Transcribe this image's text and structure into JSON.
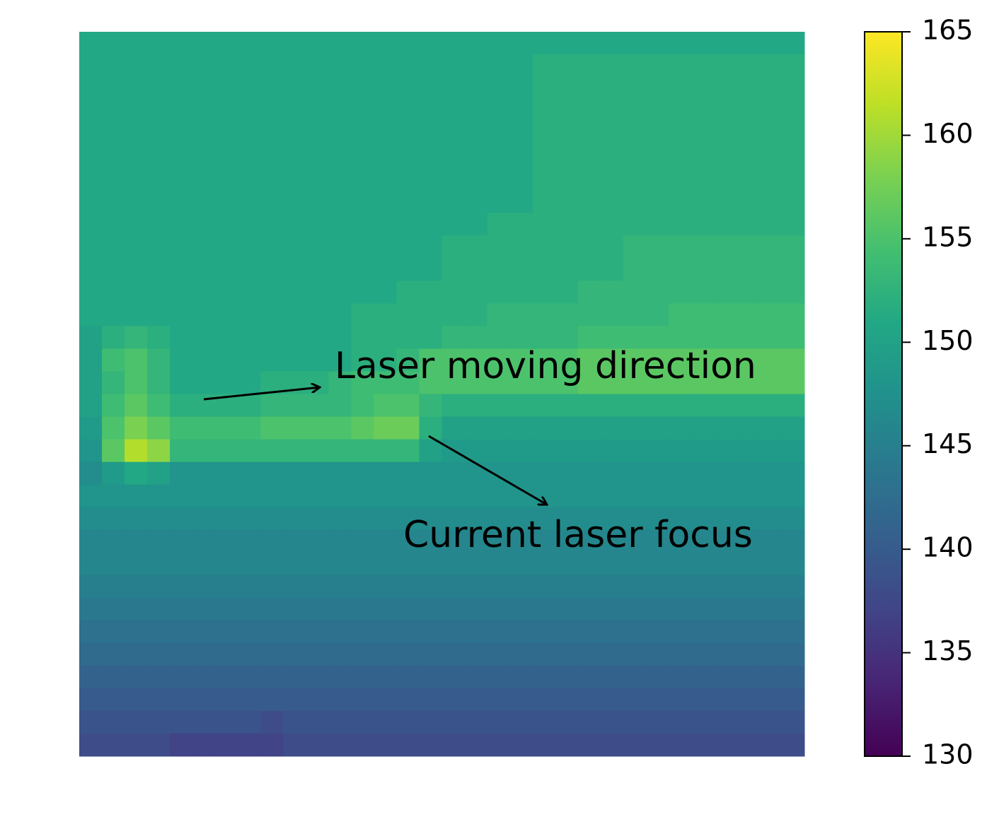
{
  "chart_data": {
    "type": "heatmap",
    "colormap": "viridis",
    "clim": [
      130,
      165
    ],
    "cticks": [
      130,
      135,
      140,
      145,
      150,
      155,
      160,
      165
    ],
    "annotations": [
      "Laser moving direction",
      "Current laser focus"
    ],
    "values": [
      [
        151,
        151,
        151,
        151,
        151,
        151,
        151,
        151,
        151,
        151,
        151,
        151,
        151,
        151,
        151,
        151,
        151,
        151,
        151,
        151,
        151,
        151,
        151,
        151,
        151,
        151,
        151,
        151,
        151,
        151,
        151,
        151
      ],
      [
        151,
        151,
        151,
        151,
        151,
        151,
        151,
        151,
        151,
        151,
        151,
        151,
        151,
        151,
        151,
        151,
        151,
        151,
        151,
        151,
        152,
        152,
        152,
        152,
        152,
        152,
        152,
        152,
        152,
        152,
        152,
        152
      ],
      [
        151,
        151,
        151,
        151,
        151,
        151,
        151,
        151,
        151,
        151,
        151,
        151,
        151,
        151,
        151,
        151,
        151,
        151,
        151,
        151,
        152,
        152,
        152,
        152,
        152,
        152,
        152,
        152,
        152,
        152,
        152,
        152
      ],
      [
        151,
        151,
        151,
        151,
        151,
        151,
        151,
        151,
        151,
        151,
        151,
        151,
        151,
        151,
        151,
        151,
        151,
        151,
        151,
        151,
        152,
        152,
        152,
        152,
        152,
        152,
        152,
        152,
        152,
        152,
        152,
        152
      ],
      [
        151,
        151,
        151,
        151,
        151,
        151,
        151,
        151,
        151,
        151,
        151,
        151,
        151,
        151,
        151,
        151,
        151,
        151,
        151,
        151,
        152,
        152,
        152,
        152,
        152,
        152,
        152,
        152,
        152,
        152,
        152,
        152
      ],
      [
        151,
        151,
        151,
        151,
        151,
        151,
        151,
        151,
        151,
        151,
        151,
        151,
        151,
        151,
        151,
        151,
        151,
        151,
        151,
        151,
        152,
        152,
        152,
        152,
        152,
        152,
        152,
        152,
        152,
        152,
        152,
        152
      ],
      [
        151,
        151,
        151,
        151,
        151,
        151,
        151,
        151,
        151,
        151,
        151,
        151,
        151,
        151,
        151,
        151,
        151,
        151,
        151,
        151,
        152,
        152,
        152,
        152,
        152,
        152,
        152,
        152,
        152,
        152,
        152,
        152
      ],
      [
        151,
        151,
        151,
        151,
        151,
        151,
        151,
        151,
        151,
        151,
        151,
        151,
        151,
        151,
        151,
        151,
        151,
        151,
        151,
        151,
        152,
        152,
        152,
        152,
        152,
        152,
        152,
        152,
        152,
        152,
        152,
        152
      ],
      [
        151,
        151,
        151,
        151,
        151,
        151,
        151,
        151,
        151,
        151,
        151,
        151,
        151,
        151,
        151,
        151,
        151,
        151,
        152,
        152,
        152,
        152,
        152,
        152,
        152,
        152,
        152,
        152,
        152,
        152,
        152,
        152
      ],
      [
        151,
        151,
        151,
        151,
        151,
        151,
        151,
        151,
        151,
        151,
        151,
        151,
        151,
        151,
        151,
        151,
        152,
        152,
        152,
        152,
        152,
        152,
        152,
        152,
        153,
        153,
        153,
        153,
        153,
        153,
        153,
        153
      ],
      [
        151,
        151,
        151,
        151,
        151,
        151,
        151,
        151,
        151,
        151,
        151,
        151,
        151,
        151,
        151,
        151,
        152,
        152,
        152,
        152,
        152,
        152,
        152,
        152,
        153,
        153,
        153,
        153,
        153,
        153,
        153,
        153
      ],
      [
        151,
        151,
        151,
        151,
        151,
        151,
        151,
        151,
        151,
        151,
        151,
        151,
        151,
        151,
        152,
        152,
        152,
        152,
        152,
        152,
        152,
        152,
        153,
        153,
        153,
        153,
        153,
        153,
        153,
        153,
        153,
        153
      ],
      [
        151,
        151,
        151,
        151,
        151,
        151,
        151,
        151,
        151,
        151,
        151,
        151,
        152,
        152,
        152,
        152,
        152,
        152,
        153,
        153,
        153,
        153,
        153,
        153,
        153,
        153,
        154,
        154,
        154,
        154,
        154,
        154
      ],
      [
        150,
        152,
        153,
        152,
        151,
        151,
        151,
        151,
        151,
        151,
        151,
        151,
        152,
        152,
        152,
        152,
        153,
        153,
        153,
        153,
        153,
        153,
        154,
        154,
        154,
        154,
        154,
        154,
        154,
        154,
        154,
        154
      ],
      [
        150,
        154,
        155,
        153,
        151,
        151,
        151,
        151,
        151,
        151,
        151,
        151,
        152,
        152,
        153,
        155,
        155,
        155,
        155,
        155,
        155,
        155,
        156,
        156,
        156,
        156,
        156,
        156,
        156,
        156,
        156,
        156
      ],
      [
        150,
        153,
        155,
        153,
        151,
        151,
        151,
        151,
        152,
        152,
        152,
        153,
        154,
        154,
        154,
        155,
        155,
        155,
        155,
        155,
        155,
        155,
        156,
        156,
        156,
        156,
        156,
        156,
        156,
        156,
        156,
        156
      ],
      [
        150,
        154,
        156,
        154,
        152,
        152,
        152,
        152,
        153,
        153,
        153,
        153,
        154,
        155,
        155,
        153,
        152,
        152,
        152,
        152,
        152,
        152,
        152,
        152,
        152,
        152,
        152,
        152,
        152,
        152,
        152,
        152
      ],
      [
        149,
        155,
        158,
        156,
        154,
        154,
        154,
        154,
        155,
        155,
        155,
        155,
        156,
        157,
        157,
        152,
        150,
        150,
        150,
        150,
        150,
        150,
        150,
        150,
        150,
        150,
        150,
        150,
        150,
        150,
        150,
        150
      ],
      [
        148,
        156,
        161,
        159,
        153,
        153,
        153,
        153,
        153,
        153,
        153,
        153,
        153,
        153,
        153,
        150,
        149,
        149,
        149,
        149,
        149,
        149,
        149,
        149,
        149,
        149,
        149,
        149,
        149,
        149,
        149,
        149
      ],
      [
        147,
        149,
        151,
        150,
        148,
        148,
        148,
        148,
        148,
        148,
        148,
        148,
        148,
        148,
        148,
        148,
        148,
        148,
        148,
        148,
        148,
        148,
        148,
        148,
        148,
        148,
        148,
        148,
        148,
        148,
        148,
        148
      ],
      [
        148,
        148,
        148,
        148,
        148,
        148,
        148,
        148,
        148,
        148,
        148,
        148,
        148,
        148,
        148,
        148,
        148,
        148,
        148,
        148,
        148,
        148,
        148,
        148,
        148,
        148,
        148,
        148,
        148,
        148,
        148,
        148
      ],
      [
        147,
        147,
        147,
        147,
        147,
        147,
        147,
        147,
        147,
        147,
        147,
        147,
        147,
        147,
        147,
        147,
        147,
        147,
        147,
        147,
        147,
        147,
        147,
        147,
        147,
        147,
        147,
        147,
        147,
        147,
        147,
        147
      ],
      [
        146,
        146,
        146,
        146,
        146,
        146,
        146,
        146,
        146,
        146,
        146,
        146,
        146,
        146,
        146,
        146,
        146,
        146,
        146,
        146,
        146,
        146,
        146,
        146,
        146,
        146,
        146,
        146,
        146,
        146,
        146,
        146
      ],
      [
        146,
        146,
        146,
        146,
        146,
        146,
        146,
        146,
        146,
        146,
        146,
        146,
        146,
        146,
        146,
        146,
        146,
        146,
        146,
        146,
        146,
        146,
        146,
        146,
        146,
        146,
        146,
        146,
        146,
        146,
        146,
        146
      ],
      [
        145,
        145,
        145,
        145,
        145,
        145,
        145,
        145,
        145,
        145,
        145,
        145,
        145,
        145,
        145,
        145,
        145,
        145,
        145,
        145,
        145,
        145,
        145,
        145,
        145,
        145,
        145,
        145,
        145,
        145,
        145,
        145
      ],
      [
        144,
        144,
        144,
        144,
        144,
        144,
        144,
        144,
        144,
        144,
        144,
        144,
        144,
        144,
        144,
        144,
        144,
        144,
        144,
        144,
        144,
        144,
        144,
        144,
        144,
        144,
        144,
        144,
        144,
        144,
        144,
        144
      ],
      [
        143,
        143,
        143,
        143,
        143,
        143,
        143,
        143,
        143,
        143,
        143,
        143,
        143,
        143,
        143,
        143,
        143,
        143,
        143,
        143,
        143,
        143,
        143,
        143,
        143,
        143,
        143,
        143,
        143,
        143,
        143,
        143
      ],
      [
        142,
        142,
        142,
        142,
        142,
        142,
        142,
        142,
        142,
        142,
        142,
        142,
        142,
        142,
        142,
        142,
        142,
        142,
        142,
        142,
        142,
        142,
        142,
        142,
        142,
        142,
        142,
        142,
        142,
        142,
        142,
        142
      ],
      [
        141,
        141,
        141,
        141,
        141,
        141,
        141,
        141,
        141,
        141,
        141,
        141,
        141,
        141,
        141,
        141,
        141,
        141,
        141,
        141,
        141,
        141,
        141,
        141,
        141,
        141,
        141,
        141,
        141,
        141,
        141,
        141
      ],
      [
        140,
        140,
        140,
        140,
        140,
        140,
        140,
        140,
        140,
        140,
        140,
        140,
        140,
        140,
        140,
        140,
        140,
        140,
        140,
        140,
        140,
        140,
        140,
        140,
        140,
        140,
        140,
        140,
        140,
        140,
        140,
        140
      ],
      [
        139,
        139,
        139,
        139,
        139,
        139,
        139,
        139,
        138,
        139,
        139,
        139,
        139,
        139,
        139,
        139,
        139,
        139,
        139,
        139,
        139,
        139,
        139,
        139,
        139,
        139,
        139,
        139,
        139,
        139,
        139,
        139
      ],
      [
        138,
        138,
        138,
        138,
        137,
        137,
        137,
        137,
        137,
        138,
        138,
        138,
        138,
        138,
        138,
        138,
        138,
        138,
        138,
        138,
        138,
        138,
        138,
        138,
        138,
        138,
        138,
        138,
        138,
        138,
        138,
        138
      ]
    ]
  }
}
